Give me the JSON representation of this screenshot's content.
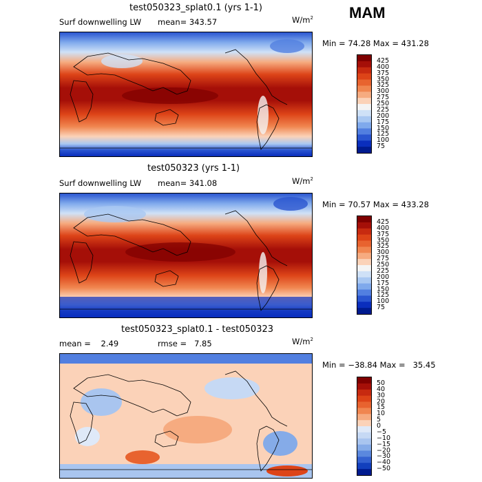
{
  "season": "MAM",
  "panels": [
    {
      "title": "test050323_splat0.1 (yrs 1-1)",
      "left_label": "Surf downwelling LW",
      "stat_label": "mean=",
      "stat_value": "343.57",
      "unit_base": "W/m",
      "unit_exp": "2",
      "minmax": "Min =  74.28 Max = 431.28",
      "levels": [
        "425",
        "400",
        "375",
        "350",
        "325",
        "300",
        "275",
        "250",
        "225",
        "200",
        "175",
        "150",
        "125",
        "100",
        "75"
      ]
    },
    {
      "title": "test050323 (yrs 1-1)",
      "left_label": "Surf downwelling LW",
      "stat_label": "mean=",
      "stat_value": "341.08",
      "unit_base": "W/m",
      "unit_exp": "2",
      "minmax": "Min =  70.57 Max = 433.28",
      "levels": [
        "425",
        "400",
        "375",
        "350",
        "325",
        "300",
        "275",
        "250",
        "225",
        "200",
        "175",
        "150",
        "125",
        "100",
        "75"
      ]
    },
    {
      "title": "test050323_splat0.1 - test050323",
      "left_label": "mean =    2.49",
      "stat_label": "rmse =",
      "stat_value": "7.85",
      "unit_base": "W/m",
      "unit_exp": "2",
      "minmax": "Min = −38.84 Max =   35.45",
      "levels": [
        "50",
        "40",
        "30",
        "20",
        "15",
        "10",
        "5",
        "0",
        "−5",
        "−10",
        "−15",
        "−20",
        "−30",
        "−40",
        "−50"
      ]
    }
  ],
  "colors": {
    "abs_scale": [
      "#7f0000",
      "#a50f08",
      "#c72a10",
      "#dd4418",
      "#e8632f",
      "#f08650",
      "#f6ab80",
      "#fbd2b8",
      "#f4f4f4",
      "#cfe1f7",
      "#a9c8f2",
      "#7fa9ec",
      "#527fe0",
      "#2a55d0",
      "#0a2ebd",
      "#001b8f"
    ],
    "diff_scale": [
      "#7f0000",
      "#a50f08",
      "#c72a10",
      "#dd4418",
      "#e8632f",
      "#f08650",
      "#f6ab80",
      "#fbd2b8",
      "#dfe9f8",
      "#c6d9f4",
      "#a9c5ef",
      "#85abe8",
      "#5b88de",
      "#3461d0",
      "#123fbd",
      "#001b8f"
    ]
  }
}
